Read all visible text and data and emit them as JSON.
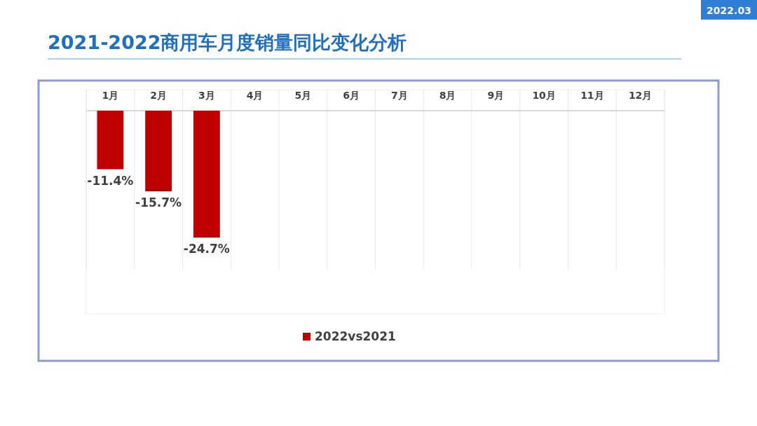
{
  "chart_data": {
    "type": "bar",
    "title": "2021-2022商用车月度销量同比变化分析",
    "annotations": [
      "2022.03"
    ],
    "categories": [
      "1月",
      "2月",
      "3月",
      "4月",
      "5月",
      "6月",
      "7月",
      "8月",
      "9月",
      "10月",
      "11月",
      "12月"
    ],
    "series": [
      {
        "name": "2022vs2021",
        "color": "#c00000",
        "values": [
          -11.4,
          -15.7,
          -24.7,
          null,
          null,
          null,
          null,
          null,
          null,
          null,
          null,
          null
        ],
        "value_labels": [
          "-11.4%",
          "-15.7%",
          "-24.7%",
          null,
          null,
          null,
          null,
          null,
          null,
          null,
          null,
          null
        ]
      }
    ],
    "grid": "x",
    "legend": "bottom"
  }
}
